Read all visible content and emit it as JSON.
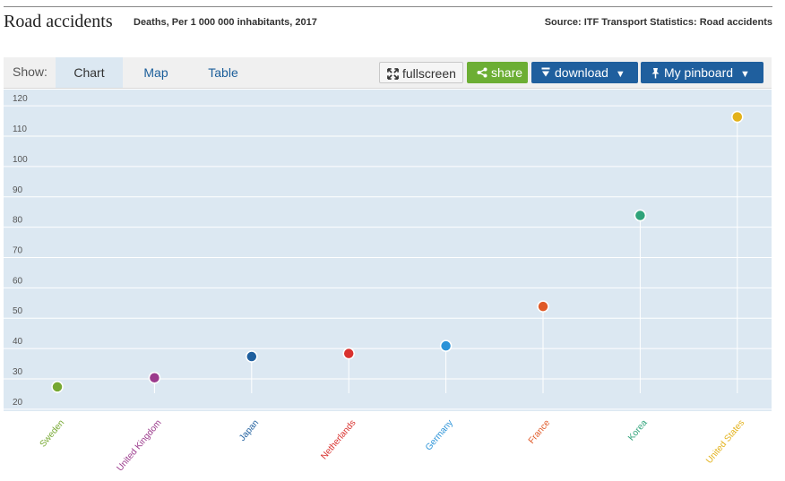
{
  "header": {
    "title": "Road accidents",
    "subtitle": "Deaths, Per 1 000 000 inhabitants, 2017",
    "source": "Source: ITF Transport Statistics: Road accidents"
  },
  "toolbar": {
    "show_label": "Show:",
    "tabs": [
      {
        "label": "Chart",
        "active": true
      },
      {
        "label": "Map",
        "active": false
      },
      {
        "label": "Table",
        "active": false
      }
    ],
    "fullscreen_label": "fullscreen",
    "share_label": "share",
    "download_label": "download",
    "pinboard_label": "My pinboard",
    "colors": {
      "share": "#6cae34",
      "primary": "#1f5f9e"
    }
  },
  "chart_data": {
    "type": "scatter",
    "categories": [
      "Sweden",
      "United Kingdom",
      "Japan",
      "Netherlands",
      "Germany",
      "France",
      "Korea",
      "United States"
    ],
    "values": [
      25,
      28,
      35,
      36,
      38.5,
      51.5,
      81.5,
      114
    ],
    "colors": [
      "#76a832",
      "#9b3a8c",
      "#1f5f9e",
      "#d9312e",
      "#2b93d8",
      "#e05a28",
      "#2fa37a",
      "#e3b21b"
    ],
    "yticks": [
      20,
      30,
      40,
      50,
      60,
      70,
      80,
      90,
      100,
      110,
      120
    ],
    "ylim": [
      17,
      123
    ],
    "grid": true,
    "background": "#dce8f2"
  }
}
